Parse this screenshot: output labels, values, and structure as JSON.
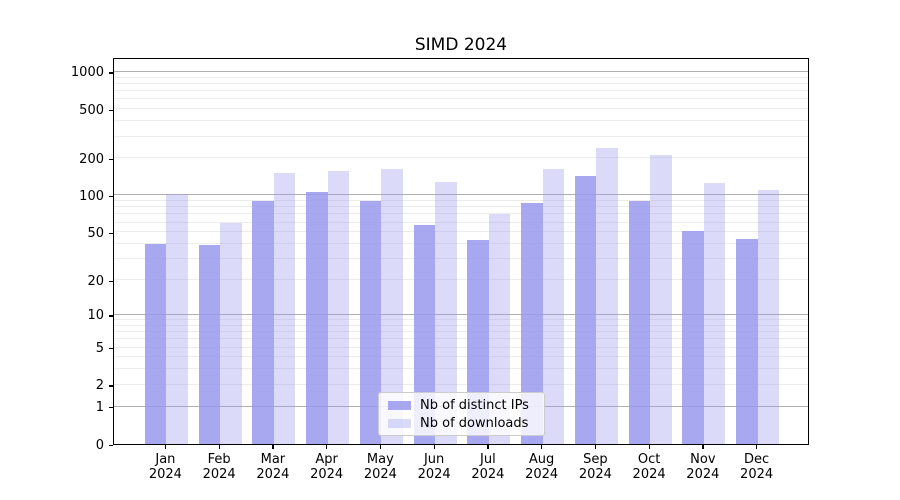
{
  "title": "SIMD 2024",
  "legend": {
    "items": [
      {
        "label": "Nb of distinct IPs",
        "color": "rgba(153,153,238,0.85)"
      },
      {
        "label": "Nb of downloads",
        "color": "rgba(153,153,238,0.35)"
      }
    ]
  },
  "chart_data": {
    "type": "bar",
    "title": "SIMD 2024",
    "categories": [
      "Jan",
      "Feb",
      "Mar",
      "Apr",
      "May",
      "Jun",
      "Jul",
      "Aug",
      "Sep",
      "Oct",
      "Nov",
      "Dec"
    ],
    "category_year": "2024",
    "series": [
      {
        "name": "Nb of distinct IPs",
        "color": "rgba(153,153,238,0.85)",
        "values": [
          40,
          39,
          91,
          107,
          90,
          57,
          43,
          87,
          145,
          91,
          51,
          44
        ]
      },
      {
        "name": "Nb of downloads",
        "color": "rgba(153,153,238,0.35)",
        "values": [
          102,
          60,
          152,
          158,
          165,
          128,
          70,
          163,
          245,
          214,
          126,
          110
        ]
      }
    ],
    "xlabel": "",
    "ylabel": "",
    "yscale": "log1p",
    "yticks": [
      0,
      1,
      2,
      5,
      10,
      20,
      50,
      100,
      200,
      500,
      1000
    ],
    "major_grid_values": [
      1,
      10,
      100,
      1000
    ],
    "minor_grid_values": [
      2,
      3,
      4,
      5,
      6,
      7,
      8,
      9,
      20,
      30,
      40,
      50,
      60,
      70,
      80,
      90,
      200,
      300,
      400,
      500,
      600,
      700,
      800,
      900
    ],
    "ylim": [
      0,
      1300
    ],
    "grid": "both",
    "legend_position": "lower center",
    "major_grid_color": "#b0b0b0",
    "minor_grid_color": "#ececec"
  }
}
